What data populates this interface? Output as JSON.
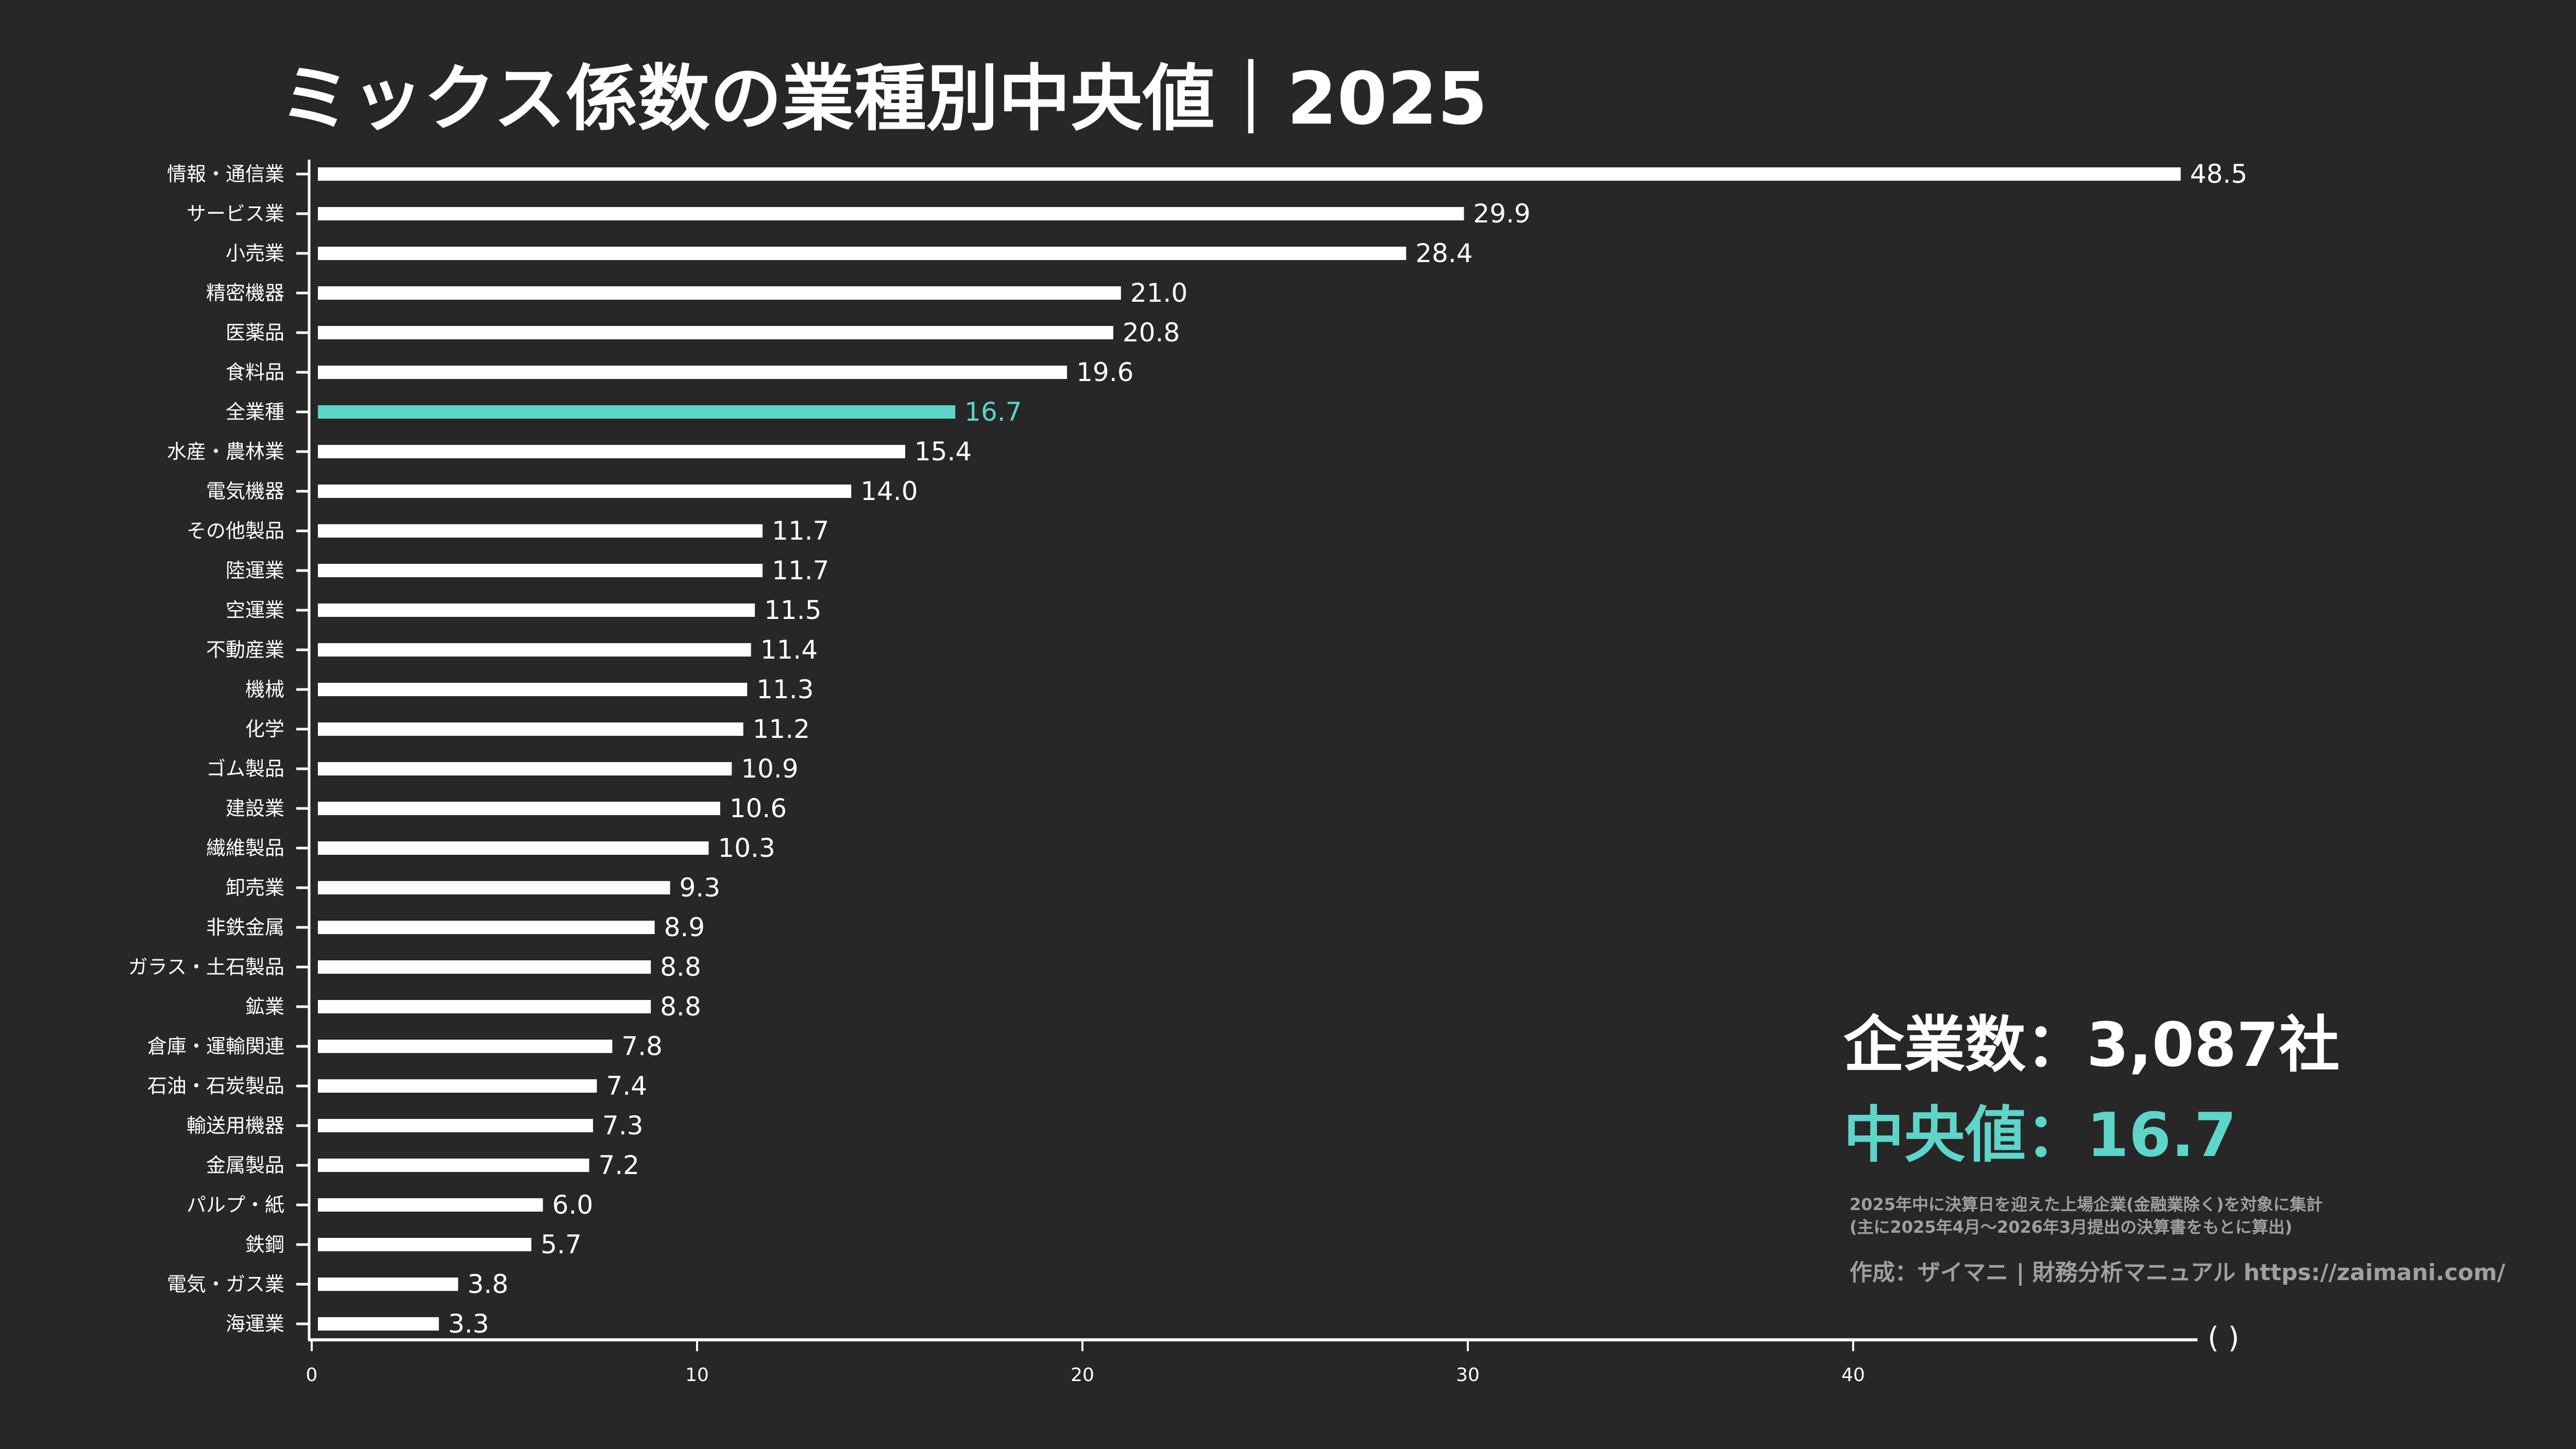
{
  "title": "ミックス係数の業種別中央値｜2025",
  "summary": {
    "company_count": "企業数：3,087社",
    "median": "中央値：16.7"
  },
  "notes": [
    "2025年中に決算日を迎えた上場企業(金融業除く)を対象に集計",
    "(主に2025年4月〜2026年3月提出の決算書をもとに算出)"
  ],
  "credit": "作成：ザイマニ | 財務分析マニュアル https://zaimani.com/",
  "colors": {
    "background": "#272727",
    "bar": "#ffffff",
    "highlight": "#5dd5c8",
    "note": "#a0a0a0"
  },
  "chart_data": {
    "type": "bar",
    "orientation": "horizontal",
    "title": "ミックス係数の業種別中央値｜2025",
    "xlabel": "( )",
    "ylabel": "",
    "xlim": [
      0,
      48.8
    ],
    "xticks": [
      0,
      10,
      20,
      30,
      40
    ],
    "grid": false,
    "highlight_category": "全業種",
    "categories": [
      "情報・通信業",
      "サービス業",
      "小売業",
      "精密機器",
      "医薬品",
      "食料品",
      "全業種",
      "水産・農林業",
      "電気機器",
      "その他製品",
      "陸運業",
      "空運業",
      "不動産業",
      "機械",
      "化学",
      "ゴム製品",
      "建設業",
      "繊維製品",
      "卸売業",
      "非鉄金属",
      "ガラス・土石製品",
      "鉱業",
      "倉庫・運輸関連",
      "石油・石炭製品",
      "輸送用機器",
      "金属製品",
      "パルプ・紙",
      "鉄鋼",
      "電気・ガス業",
      "海運業"
    ],
    "values": [
      48.5,
      29.9,
      28.4,
      21.0,
      20.8,
      19.6,
      16.7,
      15.4,
      14.0,
      11.7,
      11.7,
      11.5,
      11.4,
      11.3,
      11.2,
      10.9,
      10.6,
      10.3,
      9.3,
      8.9,
      8.8,
      8.8,
      7.8,
      7.4,
      7.3,
      7.2,
      6.0,
      5.7,
      3.8,
      3.3
    ]
  }
}
